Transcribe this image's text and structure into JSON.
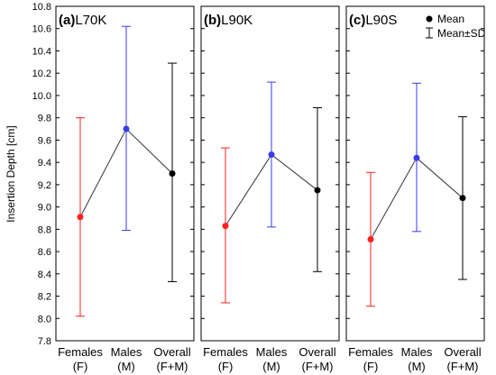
{
  "chart_data": {
    "type": "line",
    "ylabel": "Insertion Depth [cm]",
    "ylim": [
      7.8,
      10.8
    ],
    "yticks": [
      7.8,
      8.0,
      8.2,
      8.4,
      8.6,
      8.8,
      9.0,
      9.2,
      9.4,
      9.6,
      9.8,
      10.0,
      10.2,
      10.4,
      10.6,
      10.8
    ],
    "categories": [
      {
        "line1": "Females",
        "line2": "(F)"
      },
      {
        "line1": "Males",
        "line2": "(M)"
      },
      {
        "line1": "Overall",
        "line2": "(F+M)"
      }
    ],
    "legend": {
      "mean_label": "Mean",
      "sd_label": "Mean±SD",
      "placement": "top-right"
    },
    "colors": {
      "females": "#ff2020",
      "males": "#3a3af0",
      "overall": "#000000"
    },
    "panels": [
      {
        "label": "(a)",
        "title": "L70K",
        "series": [
          {
            "mean": 8.91,
            "sd_low": 8.02,
            "sd_high": 9.8
          },
          {
            "mean": 9.7,
            "sd_low": 8.79,
            "sd_high": 10.62
          },
          {
            "mean": 9.3,
            "sd_low": 8.33,
            "sd_high": 10.29
          }
        ]
      },
      {
        "label": "(b)",
        "title": "L90K",
        "series": [
          {
            "mean": 8.83,
            "sd_low": 8.14,
            "sd_high": 9.53
          },
          {
            "mean": 9.47,
            "sd_low": 8.82,
            "sd_high": 10.12
          },
          {
            "mean": 9.15,
            "sd_low": 8.42,
            "sd_high": 9.89
          }
        ]
      },
      {
        "label": "(c)",
        "title": "L90S",
        "series": [
          {
            "mean": 8.71,
            "sd_low": 8.11,
            "sd_high": 9.31
          },
          {
            "mean": 9.44,
            "sd_low": 8.78,
            "sd_high": 10.11
          },
          {
            "mean": 9.08,
            "sd_low": 8.35,
            "sd_high": 9.81
          }
        ]
      }
    ]
  }
}
